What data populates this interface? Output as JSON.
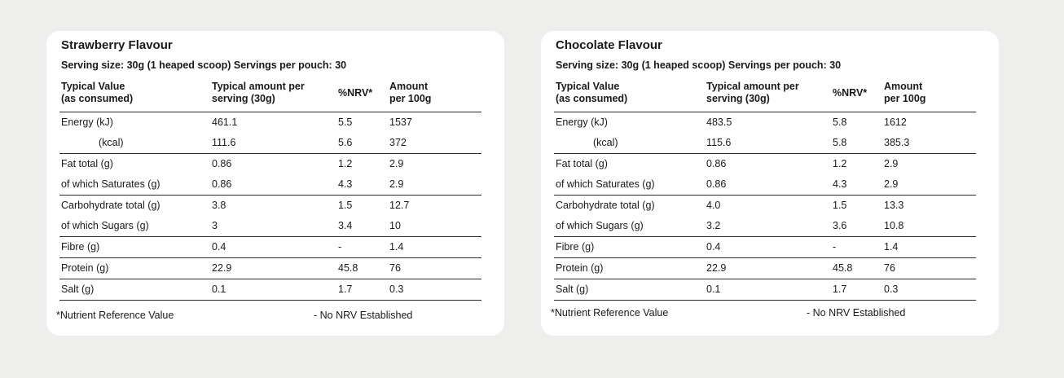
{
  "tables": [
    {
      "title": "Strawberry Flavour",
      "serving": "Serving size: 30g (1 heaped scoop) Servings per pouch: 30",
      "headers": {
        "col1": [
          "Typical Value",
          "(as consumed)"
        ],
        "col2": [
          "Typical amount per",
          "serving (30g)"
        ],
        "col3": "%NRV*",
        "col4": [
          "Amount",
          "per 100g"
        ]
      },
      "rows": [
        {
          "label": "Energy (kJ)",
          "serving": "461.1",
          "nrv": "5.5",
          "per100": "1537"
        },
        {
          "label": "(kcal)",
          "serving": "111.6",
          "nrv": "5.6",
          "per100": "372"
        },
        {
          "label": "Fat total (g)",
          "serving": "0.86",
          "nrv": "1.2",
          "per100": "2.9"
        },
        {
          "label": "of which Saturates (g)",
          "serving": "0.86",
          "nrv": "4.3",
          "per100": "2.9"
        },
        {
          "label": "Carbohydrate total (g)",
          "serving": "3.8",
          "nrv": "1.5",
          "per100": "12.7"
        },
        {
          "label": "of which Sugars (g)",
          "serving": "3",
          "nrv": "3.4",
          "per100": "10"
        },
        {
          "label": "Fibre (g)",
          "serving": "0.4",
          "nrv": "-",
          "per100": "1.4"
        },
        {
          "label": "Protein (g)",
          "serving": "22.9",
          "nrv": "45.8",
          "per100": "76"
        },
        {
          "label": "Salt (g)",
          "serving": "0.1",
          "nrv": "1.7",
          "per100": "0.3"
        }
      ],
      "footnote_left": "*Nutrient Reference Value",
      "footnote_right": "- No NRV Established"
    },
    {
      "title": "Chocolate Flavour",
      "serving": "Serving size: 30g (1 heaped scoop) Servings per pouch: 30",
      "headers": {
        "col1": [
          "Typical Value",
          "(as consumed)"
        ],
        "col2": [
          "Typical amount per",
          "serving (30g)"
        ],
        "col3": "%NRV*",
        "col4": [
          "Amount",
          "per 100g"
        ]
      },
      "rows": [
        {
          "label": "Energy (kJ)",
          "serving": "483.5",
          "nrv": "5.8",
          "per100": "1612"
        },
        {
          "label": "(kcal)",
          "serving": "115.6",
          "nrv": "5.8",
          "per100": "385.3"
        },
        {
          "label": "Fat total (g)",
          "serving": "0.86",
          "nrv": "1.2",
          "per100": "2.9"
        },
        {
          "label": "of which Saturates (g)",
          "serving": "0.86",
          "nrv": "4.3",
          "per100": "2.9"
        },
        {
          "label": "Carbohydrate total (g)",
          "serving": "4.0",
          "nrv": "1.5",
          "per100": "13.3"
        },
        {
          "label": "of which Sugars (g)",
          "serving": "3.2",
          "nrv": "3.6",
          "per100": "10.8"
        },
        {
          "label": "Fibre (g)",
          "serving": "0.4",
          "nrv": "-",
          "per100": "1.4"
        },
        {
          "label": "Protein (g)",
          "serving": "22.9",
          "nrv": "45.8",
          "per100": "76"
        },
        {
          "label": "Salt (g)",
          "serving": "0.1",
          "nrv": "1.7",
          "per100": "0.3"
        }
      ],
      "footnote_left": "*Nutrient Reference Value",
      "footnote_right": "- No NRV Established"
    }
  ]
}
